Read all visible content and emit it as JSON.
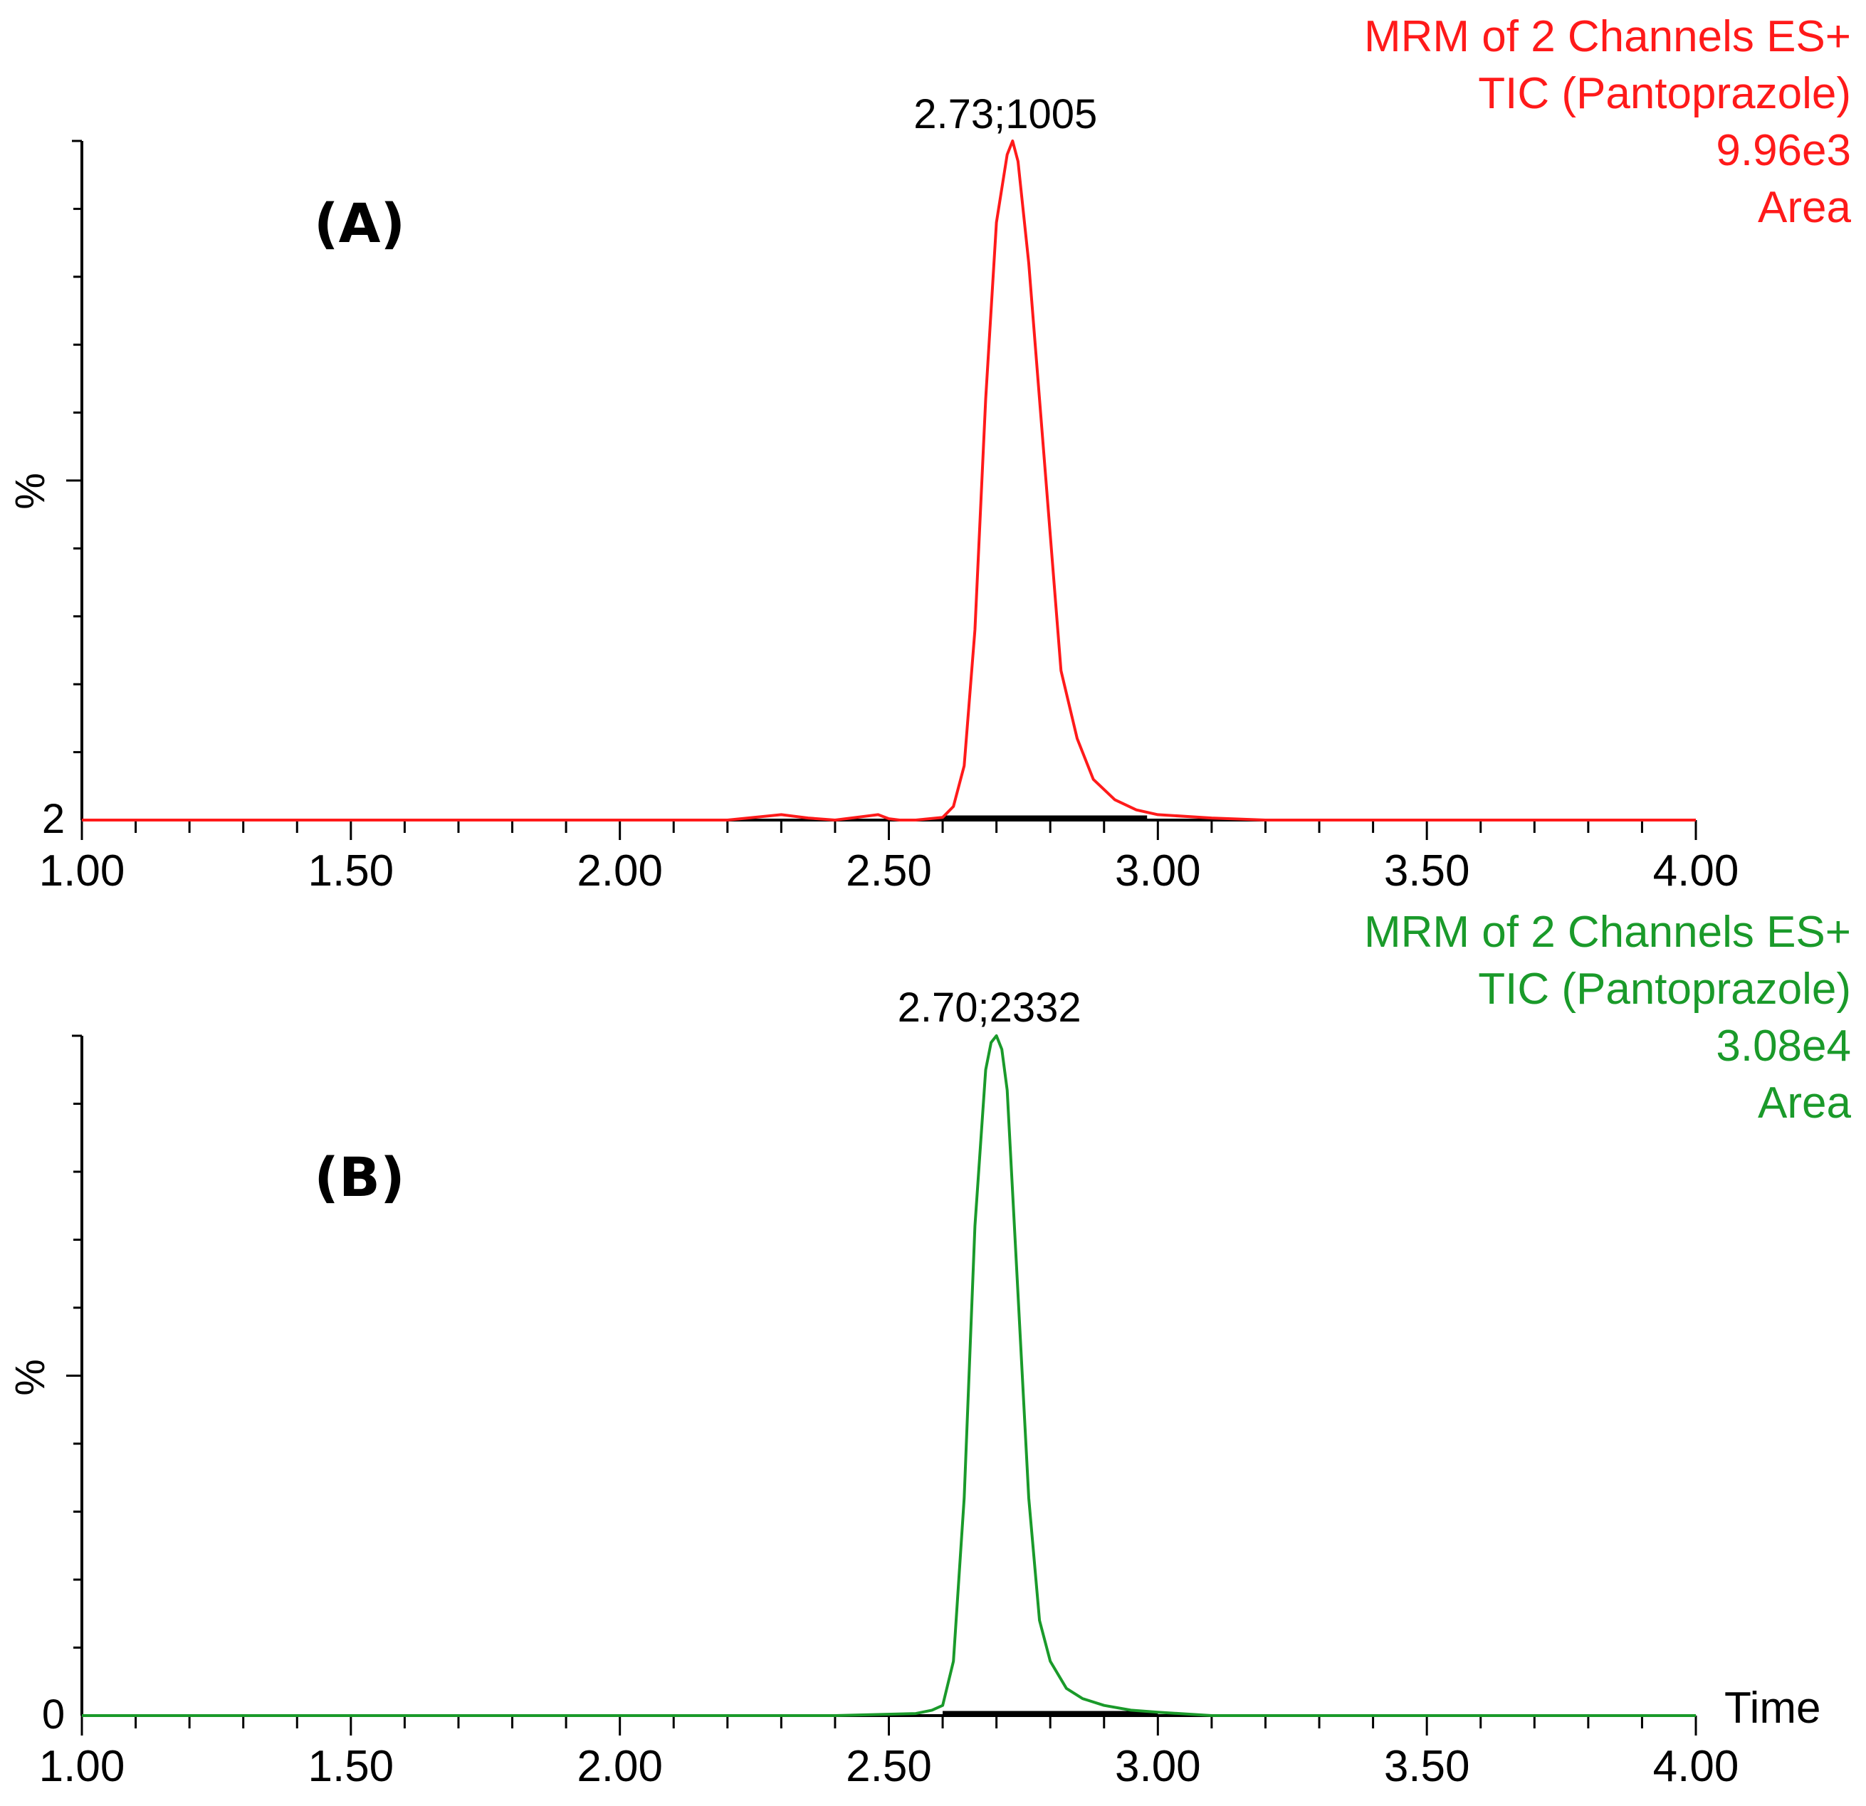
{
  "colors": {
    "panel_a": "#ff1a1a",
    "panel_b": "#1a9a2a",
    "axis": "#000000",
    "baseline": "#000000"
  },
  "chart_data": [
    {
      "type": "line",
      "panel_label": "(A)",
      "header": [
        "MRM of 2 Channels ES+",
        "TIC (Pantoprazole)",
        "9.96e3",
        "Area"
      ],
      "peak_label": "2.73;1005",
      "ylabel": "%",
      "y_tick_label": "2",
      "xlabel": "",
      "xlim": [
        1.0,
        4.0
      ],
      "ylim": [
        0,
        100
      ],
      "x_tick_labels": [
        "1.00",
        "1.50",
        "2.00",
        "2.50",
        "3.00",
        "3.50",
        "4.00"
      ],
      "grid": false,
      "series": [
        {
          "color": "#ff1a1a",
          "x": [
            1.0,
            1.2,
            1.4,
            1.6,
            1.8,
            2.0,
            2.2,
            2.3,
            2.35,
            2.4,
            2.48,
            2.5,
            2.52,
            2.55,
            2.6,
            2.62,
            2.64,
            2.66,
            2.68,
            2.7,
            2.72,
            2.73,
            2.74,
            2.76,
            2.78,
            2.8,
            2.82,
            2.85,
            2.88,
            2.92,
            2.96,
            3.0,
            3.1,
            3.2,
            3.5,
            4.0
          ],
          "y": [
            0,
            0,
            0,
            0,
            0,
            0,
            0,
            0.8,
            0.3,
            0,
            0.8,
            0.2,
            0,
            0,
            0.4,
            2,
            8,
            28,
            62,
            88,
            98,
            100,
            97,
            82,
            62,
            42,
            22,
            12,
            6,
            3,
            1.5,
            0.8,
            0.3,
            0,
            0,
            0
          ]
        }
      ],
      "integration_baseline": {
        "x_start": 2.6,
        "x_end": 2.98
      }
    },
    {
      "type": "line",
      "panel_label": "(B)",
      "header": [
        "MRM of 2 Channels ES+",
        "TIC (Pantoprazole)",
        "3.08e4",
        "Area"
      ],
      "peak_label": "2.70;2332",
      "ylabel": "%",
      "y_tick_label": "0",
      "xlabel": "Time",
      "xlim": [
        1.0,
        4.0
      ],
      "ylim": [
        0,
        100
      ],
      "x_tick_labels": [
        "1.00",
        "1.50",
        "2.00",
        "2.50",
        "3.00",
        "3.50",
        "4.00"
      ],
      "grid": false,
      "series": [
        {
          "color": "#1a9a2a",
          "x": [
            1.0,
            1.5,
            2.0,
            2.4,
            2.55,
            2.58,
            2.6,
            2.62,
            2.64,
            2.66,
            2.68,
            2.69,
            2.7,
            2.71,
            2.72,
            2.74,
            2.76,
            2.78,
            2.8,
            2.83,
            2.86,
            2.9,
            2.95,
            3.0,
            3.1,
            3.5,
            4.0
          ],
          "y": [
            0,
            0,
            0,
            0,
            0.3,
            0.8,
            1.5,
            8,
            32,
            72,
            95,
            99,
            100,
            98,
            92,
            62,
            32,
            14,
            8,
            4,
            2.5,
            1.5,
            0.8,
            0.5,
            0,
            0,
            0
          ]
        }
      ],
      "integration_baseline": {
        "x_start": 2.6,
        "x_end": 3.0
      }
    }
  ]
}
